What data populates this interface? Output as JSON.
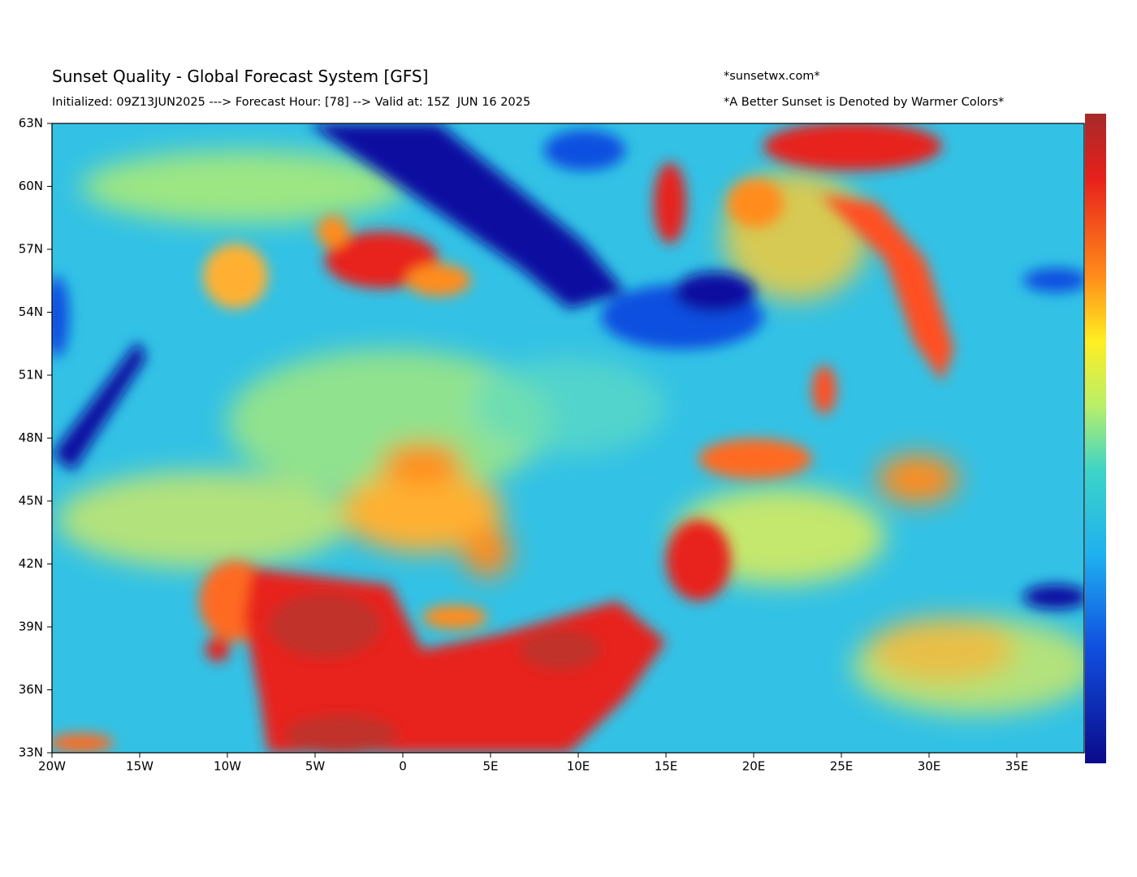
{
  "header": {
    "title": "Sunset Quality - Global Forecast System [GFS]",
    "subtitle": "Initialized: 09Z13JUN2025 ---> Forecast Hour: [78] --> Valid at: 15Z  JUN 16 2025",
    "site": "*sunsetwx.com*",
    "note": "*A Better Sunset is Denoted by Warmer Colors*"
  },
  "map": {
    "lat_labels": [
      "63N",
      "60N",
      "57N",
      "54N",
      "51N",
      "48N",
      "45N",
      "42N",
      "39N",
      "36N",
      "33N"
    ],
    "lon_labels": [
      "20W",
      "15W",
      "10W",
      "5W",
      "0",
      "5E",
      "10E",
      "15E",
      "20E",
      "25E",
      "30E",
      "35E"
    ]
  }
}
